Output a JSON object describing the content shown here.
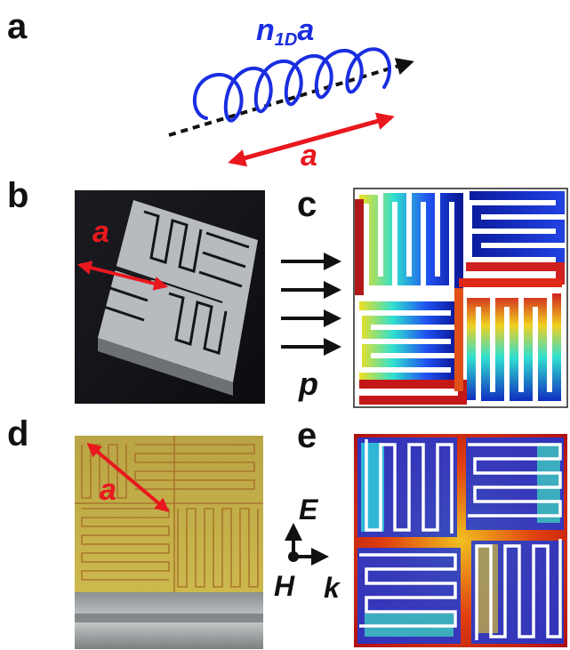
{
  "panels": {
    "a": {
      "label": "a",
      "helix_label": "n",
      "helix_subscript": "1D",
      "helix_suffix": "a",
      "period_label": "a"
    },
    "b": {
      "label": "b",
      "scale_label": "a"
    },
    "c": {
      "label": "c",
      "momentum_label": "p"
    },
    "d": {
      "label": "d",
      "scale_label": "a"
    },
    "e": {
      "label": "e",
      "axis_e": "E",
      "axis_h": "H",
      "axis_k": "k"
    }
  },
  "colors": {
    "helix": "#1a2ee0",
    "arrow_red": "#e8181e",
    "axis_dashed": "#111111",
    "label_blue": "#1a2ee0",
    "photo_dark": "#15151a",
    "metal": "#c9ccd0",
    "pcb_yellow": "#c9b34a",
    "copper": "#a8702a"
  }
}
